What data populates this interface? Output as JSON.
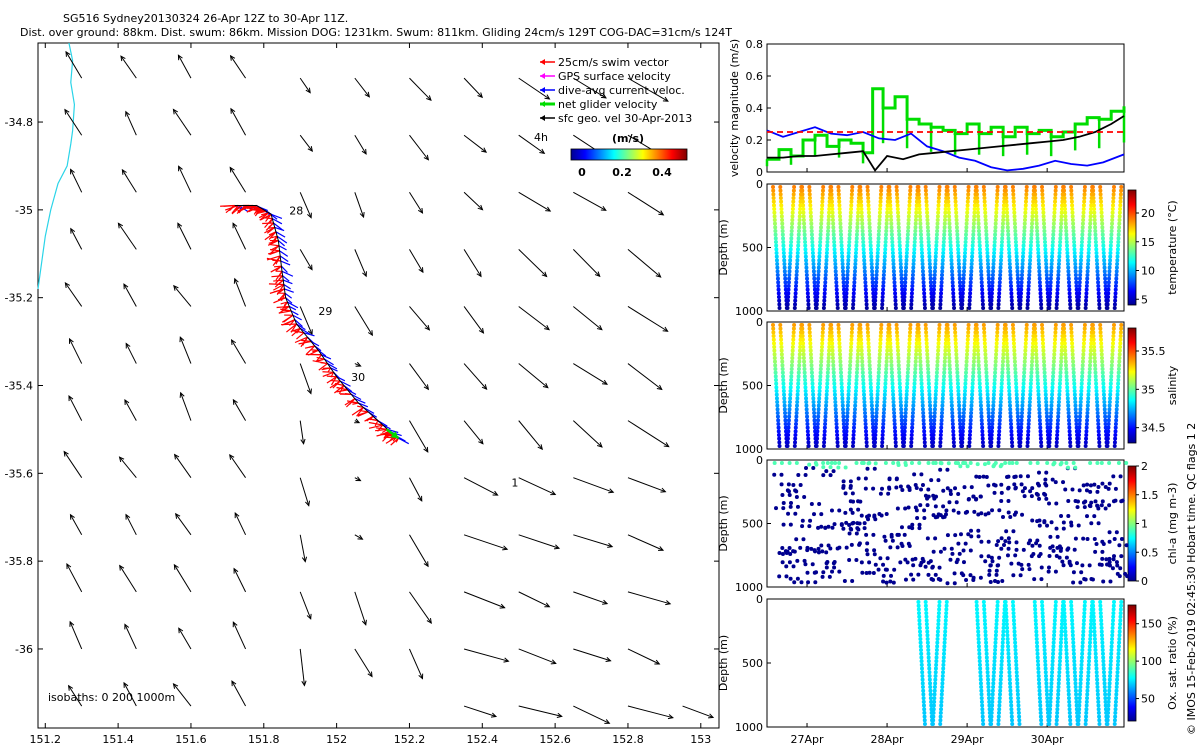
{
  "header": {
    "title_line1": "SG516 Sydney20130324 26-Apr 12Z to 30-Apr 11Z.",
    "title_line2": "Dist. over ground: 88km. Dist. swum: 86km. Mission DOG: 1231km. Swum: 811km. Gliding 24cm/s 129T COG-DAC=31cm/s 124T"
  },
  "side_note": "© IMOS 15-Feb-2019 02:45:30 Hobart time. QC flags 1  2",
  "colors": {
    "coast": "#2ad4e8",
    "swim_vector": "#ff0000",
    "gps_velocity": "#ff00ff",
    "dac_vector": "#0000ff",
    "net_velocity": "#00dd00",
    "ref_speed": "#ff0000"
  },
  "chart_data": [
    {
      "type": "map",
      "name": "track_map",
      "xlim": [
        151.18,
        153.05
      ],
      "ylim": [
        -36.18,
        -34.62
      ],
      "x_ticks": [
        151.2,
        151.4,
        151.6,
        151.8,
        152,
        152.2,
        152.4,
        152.6,
        152.8,
        153
      ],
      "x_tick_labels": [
        "151.2",
        "151.4",
        "151.6",
        "151.8",
        "152",
        "152.2",
        "152.4",
        "152.6",
        "152.8",
        "153"
      ],
      "y_ticks": [
        -34.8,
        -35,
        -35.2,
        -35.4,
        -35.6,
        -35.8,
        -36
      ],
      "y_tick_labels": [
        "-34.8",
        "-35",
        "-35.2",
        "-35.4",
        "-35.6",
        "-35.8",
        "-36"
      ],
      "legend": {
        "items": [
          {
            "label": "25cm/s swim vector",
            "color": "#ff0000"
          },
          {
            "label": "GPS surface velocity",
            "color": "#ff00ff"
          },
          {
            "label": "dive-avg current veloc.",
            "color": "#0000ff"
          },
          {
            "label": "net glider velocity",
            "color": "#00dd00"
          },
          {
            "label": "sfc geo. vel 30-Apr-2013",
            "color": "#000000"
          }
        ],
        "colorbar_title": "(m/s)",
        "colorbar_ticks": [
          "0",
          "0.2",
          "0.4"
        ],
        "extra_label": "4h",
        "placement": "top-right"
      },
      "track": [
        [
          151.72,
          -34.99
        ],
        [
          151.78,
          -34.99
        ],
        [
          151.82,
          -35.01
        ],
        [
          151.84,
          -35.07
        ],
        [
          151.85,
          -35.14
        ],
        [
          151.86,
          -35.2
        ],
        [
          151.89,
          -35.26
        ],
        [
          151.95,
          -35.32
        ],
        [
          152.0,
          -35.38
        ],
        [
          152.06,
          -35.44
        ],
        [
          152.14,
          -35.5
        ],
        [
          152.17,
          -35.52
        ]
      ],
      "day_labels": [
        {
          "label": "28",
          "lon": 151.87,
          "lat": -35.01
        },
        {
          "label": "29",
          "lon": 151.95,
          "lat": -35.24
        },
        {
          "label": "30",
          "lon": 152.04,
          "lat": -35.39
        },
        {
          "label": "1",
          "lon": 152.48,
          "lat": -35.63
        }
      ],
      "coast": [
        [
          151.265,
          -34.62
        ],
        [
          151.275,
          -34.66
        ],
        [
          151.27,
          -34.71
        ],
        [
          151.28,
          -34.76
        ],
        [
          151.275,
          -34.82
        ],
        [
          151.27,
          -34.85
        ],
        [
          151.26,
          -34.9
        ],
        [
          151.235,
          -34.94
        ],
        [
          151.215,
          -35.0
        ],
        [
          151.2,
          -35.06
        ],
        [
          151.19,
          -35.12
        ],
        [
          151.18,
          -35.18
        ]
      ],
      "isobath_label": "isobaths: 0   200  1000m",
      "grid_lon": [
        151.3,
        151.45,
        151.6,
        151.75,
        151.9,
        152.05,
        152.2,
        152.35,
        152.5,
        152.65,
        152.8,
        152.95
      ],
      "grid_lat": [
        -34.7,
        -34.83,
        -34.96,
        -35.09,
        -35.22,
        -35.35,
        -35.48,
        -35.61,
        -35.74,
        -35.87,
        -36.0,
        -36.13
      ]
    },
    {
      "type": "line",
      "name": "velocity_panel",
      "ylabel": "velocity magnitude (m/s)",
      "ylim": [
        0,
        0.8
      ],
      "y_tick_labels": [
        "0",
        "0.2",
        "0.4",
        "0.6",
        "0.8"
      ],
      "x_range_days": [
        26.5,
        30.96
      ],
      "series": [
        {
          "color": "#00dd00",
          "step": true,
          "x": [
            26.5,
            26.65,
            26.8,
            26.95,
            27.1,
            27.25,
            27.4,
            27.55,
            27.7,
            27.82,
            27.95,
            28.1,
            28.25,
            28.4,
            28.55,
            28.7,
            28.85,
            29.0,
            29.15,
            29.3,
            29.45,
            29.6,
            29.75,
            29.9,
            30.05,
            30.2,
            30.35,
            30.5,
            30.65,
            30.8,
            30.96
          ],
          "y": [
            0.08,
            0.14,
            0.1,
            0.2,
            0.23,
            0.16,
            0.2,
            0.18,
            0.12,
            0.52,
            0.4,
            0.47,
            0.33,
            0.3,
            0.28,
            0.26,
            0.24,
            0.3,
            0.24,
            0.28,
            0.22,
            0.28,
            0.24,
            0.26,
            0.22,
            0.25,
            0.3,
            0.34,
            0.33,
            0.38,
            0.41
          ]
        },
        {
          "color": "#0000ff",
          "x": [
            26.5,
            26.7,
            26.9,
            27.1,
            27.3,
            27.5,
            27.7,
            27.9,
            28.1,
            28.3,
            28.5,
            28.7,
            28.9,
            29.1,
            29.3,
            29.5,
            29.7,
            29.9,
            30.1,
            30.3,
            30.5,
            30.7,
            30.96
          ],
          "y": [
            0.26,
            0.22,
            0.25,
            0.28,
            0.24,
            0.23,
            0.25,
            0.21,
            0.2,
            0.24,
            0.16,
            0.13,
            0.09,
            0.07,
            0.03,
            0.01,
            0.02,
            0.04,
            0.07,
            0.05,
            0.04,
            0.06,
            0.11
          ]
        },
        {
          "color": "#000000",
          "x": [
            26.5,
            26.7,
            26.9,
            27.1,
            27.3,
            27.5,
            27.7,
            27.85,
            28.0,
            28.2,
            28.4,
            28.6,
            28.8,
            29.0,
            29.2,
            29.4,
            29.6,
            29.8,
            30.0,
            30.2,
            30.4,
            30.6,
            30.8,
            30.96
          ],
          "y": [
            0.09,
            0.09,
            0.1,
            0.1,
            0.11,
            0.12,
            0.13,
            0.01,
            0.1,
            0.08,
            0.11,
            0.12,
            0.13,
            0.14,
            0.15,
            0.16,
            0.17,
            0.18,
            0.19,
            0.2,
            0.22,
            0.25,
            0.3,
            0.35
          ]
        },
        {
          "color": "#ff0000",
          "dashed": true,
          "x": [
            26.5,
            30.96
          ],
          "y": [
            0.25,
            0.25
          ]
        }
      ]
    },
    {
      "type": "scatter",
      "name": "temperature_panel",
      "ylabel": "Depth (m)",
      "ylim": [
        0,
        1000
      ],
      "y_tick_labels": [
        "0",
        "500",
        "1000"
      ],
      "color_label": "temperature (°C)",
      "color_range": [
        4,
        24
      ],
      "colorbar_ticks": [
        "5",
        "10",
        "15",
        "20"
      ],
      "profile": "temp",
      "dives": 24,
      "x_range_days": [
        26.5,
        30.96
      ]
    },
    {
      "type": "scatter",
      "name": "salinity_panel",
      "ylabel": "Depth (m)",
      "ylim": [
        0,
        1000
      ],
      "y_tick_labels": [
        "0",
        "500",
        "1000"
      ],
      "color_label": "salinity",
      "color_range": [
        34.3,
        35.8
      ],
      "colorbar_ticks": [
        "34.5",
        "35",
        "35.5"
      ],
      "profile": "salt",
      "dives": 24,
      "x_range_days": [
        26.5,
        30.96
      ]
    },
    {
      "type": "scatter",
      "name": "chla_panel",
      "ylabel": "Depth (m)",
      "ylim": [
        0,
        1000
      ],
      "y_tick_labels": [
        "0",
        "500",
        "1000"
      ],
      "color_label": "chl-a (mg m-3)",
      "color_range": [
        0,
        2
      ],
      "colorbar_ticks": [
        "0",
        "0.5",
        "1",
        "1.5",
        "2"
      ],
      "profile": "chl",
      "dives": 24,
      "x_range_days": [
        26.5,
        30.96
      ]
    },
    {
      "type": "scatter",
      "name": "oxygen_panel",
      "ylabel": "Depth (m)",
      "ylim": [
        0,
        1000
      ],
      "y_tick_labels": [
        "0",
        "500",
        "1000"
      ],
      "color_label": "Ox. sat. ratio (%)",
      "color_range": [
        20,
        175
      ],
      "colorbar_ticks": [
        "50",
        "100",
        "150"
      ],
      "profile": "oxy",
      "dives": 24,
      "x_range_days": [
        26.5,
        30.96
      ],
      "x_ticks": [
        27,
        28,
        29,
        30
      ],
      "x_tick_labels": [
        "27Apr",
        "28Apr",
        "29Apr",
        "30Apr"
      ]
    }
  ]
}
